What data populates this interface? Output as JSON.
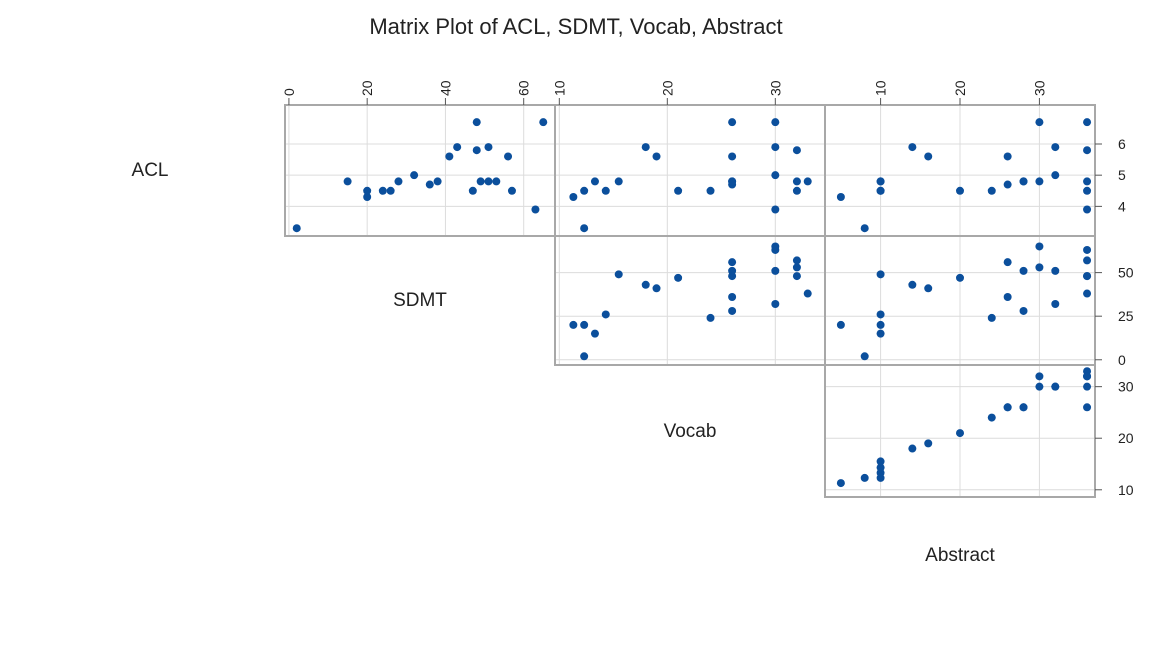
{
  "chart_data": {
    "type": "scatter-matrix",
    "title": "Matrix Plot of ACL, SDMT, Vocab, Abstract",
    "variables": [
      "ACL",
      "SDMT",
      "Vocab",
      "Abstract"
    ],
    "colors": {
      "point": "#0b4f9c",
      "grid": "#dcdcdc",
      "frame": "#a8a8a8"
    },
    "axes": {
      "SDMT": {
        "range": [
          -1,
          68
        ],
        "ticks": [
          0,
          20,
          40,
          60
        ]
      },
      "Vocab": {
        "range": [
          9.6,
          34.6
        ],
        "ticks": [
          10,
          20,
          30
        ]
      },
      "Abstract": {
        "range": [
          3,
          37
        ],
        "ticks": [
          10,
          20,
          30
        ]
      },
      "ACL": {
        "range": [
          3.05,
          7.25
        ],
        "ticks": [
          4,
          5,
          6
        ]
      },
      "SDMT_y": {
        "range": [
          -3,
          71
        ],
        "ticks": [
          0,
          25,
          50
        ]
      },
      "Vocab_y": {
        "range": [
          8.6,
          34.2
        ],
        "ticks": [
          10,
          20,
          30
        ]
      }
    },
    "observations": [
      {
        "ACL": 3.3,
        "SDMT": 2,
        "Vocab": 12.3,
        "Abstract": 8
      },
      {
        "ACL": 4.3,
        "SDMT": 20,
        "Vocab": 11.3,
        "Abstract": 5
      },
      {
        "ACL": 4.5,
        "SDMT": 20,
        "Vocab": 12.3,
        "Abstract": 10
      },
      {
        "ACL": 4.8,
        "SDMT": 15,
        "Vocab": 13.3,
        "Abstract": 10
      },
      {
        "ACL": 4.5,
        "SDMT": 24,
        "Vocab": 24.0,
        "Abstract": 24
      },
      {
        "ACL": 4.5,
        "SDMT": 26,
        "Vocab": 14.3,
        "Abstract": 10
      },
      {
        "ACL": 4.8,
        "SDMT": 28,
        "Vocab": 26.0,
        "Abstract": 28
      },
      {
        "ACL": 5.0,
        "SDMT": 32,
        "Vocab": 30.0,
        "Abstract": 32
      },
      {
        "ACL": 4.7,
        "SDMT": 36,
        "Vocab": 26.0,
        "Abstract": 26
      },
      {
        "ACL": 4.8,
        "SDMT": 38,
        "Vocab": 33.0,
        "Abstract": 36
      },
      {
        "ACL": 5.6,
        "SDMT": 41,
        "Vocab": 19.0,
        "Abstract": 16
      },
      {
        "ACL": 5.9,
        "SDMT": 43,
        "Vocab": 18.0,
        "Abstract": 14
      },
      {
        "ACL": 4.5,
        "SDMT": 47,
        "Vocab": 21.0,
        "Abstract": 20
      },
      {
        "ACL": 5.8,
        "SDMT": 48,
        "Vocab": 32.0,
        "Abstract": 36
      },
      {
        "ACL": 6.7,
        "SDMT": 48,
        "Vocab": 26.0,
        "Abstract": 36
      },
      {
        "ACL": 4.8,
        "SDMT": 49,
        "Vocab": 15.5,
        "Abstract": 10
      },
      {
        "ACL": 4.8,
        "SDMT": 51,
        "Vocab": 26.0,
        "Abstract": 28
      },
      {
        "ACL": 5.9,
        "SDMT": 51,
        "Vocab": 30.0,
        "Abstract": 32
      },
      {
        "ACL": 4.8,
        "SDMT": 53,
        "Vocab": 32.0,
        "Abstract": 30
      },
      {
        "ACL": 5.6,
        "SDMT": 56,
        "Vocab": 26.0,
        "Abstract": 26
      },
      {
        "ACL": 4.5,
        "SDMT": 57,
        "Vocab": 32.0,
        "Abstract": 36
      },
      {
        "ACL": 3.9,
        "SDMT": 63,
        "Vocab": 30.0,
        "Abstract": 36
      },
      {
        "ACL": 6.7,
        "SDMT": 65,
        "Vocab": 30.0,
        "Abstract": 30
      }
    ]
  }
}
